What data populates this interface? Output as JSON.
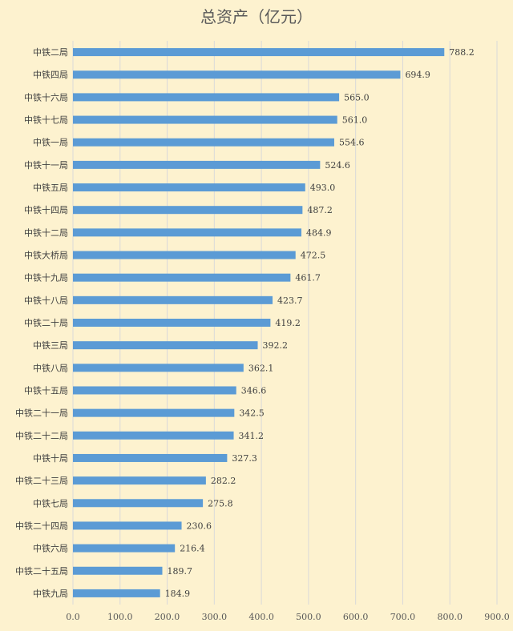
{
  "chart_data": {
    "type": "bar",
    "orientation": "horizontal",
    "title": "总资产（亿元）",
    "xlabel": "",
    "ylabel": "",
    "xlim": [
      0,
      900
    ],
    "x_ticks": [
      "0.0",
      "100.0",
      "200.0",
      "300.0",
      "400.0",
      "500.0",
      "600.0",
      "700.0",
      "800.0",
      "900.0"
    ],
    "grid": "vertical",
    "legend": "none",
    "bar_color": "#5b9bd5",
    "background_color": "#fdf2cf",
    "categories": [
      "中铁二局",
      "中铁四局",
      "中铁十六局",
      "中铁十七局",
      "中铁一局",
      "中铁十一局",
      "中铁五局",
      "中铁十四局",
      "中铁十二局",
      "中铁大桥局",
      "中铁十九局",
      "中铁十八局",
      "中铁二十局",
      "中铁三局",
      "中铁八局",
      "中铁十五局",
      "中铁二十一局",
      "中铁二十二局",
      "中铁十局",
      "中铁二十三局",
      "中铁七局",
      "中铁二十四局",
      "中铁六局",
      "中铁二十五局",
      "中铁九局"
    ],
    "values": [
      788.2,
      694.9,
      565.0,
      561.0,
      554.6,
      524.6,
      493.0,
      487.2,
      484.9,
      472.5,
      461.7,
      423.7,
      419.2,
      392.2,
      362.1,
      346.6,
      342.5,
      341.2,
      327.3,
      282.2,
      275.8,
      230.6,
      216.4,
      189.7,
      184.9
    ],
    "value_labels": [
      "788.2",
      "694.9",
      "565.0",
      "561.0",
      "554.6",
      "524.6",
      "493.0",
      "487.2",
      "484.9",
      "472.5",
      "461.7",
      "423.7",
      "419.2",
      "392.2",
      "362.1",
      "346.6",
      "342.5",
      "341.2",
      "327.3",
      "282.2",
      "275.8",
      "230.6",
      "216.4",
      "189.7",
      "184.9"
    ]
  }
}
